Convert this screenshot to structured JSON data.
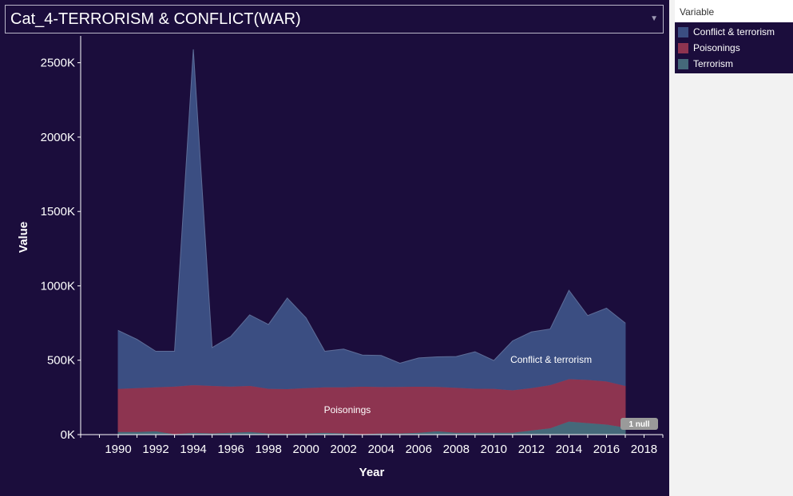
{
  "filter": {
    "selected": "Cat_4-TERRORISM & CONFLICT(WAR)"
  },
  "legend": {
    "title": "Variable",
    "items": [
      {
        "label": "Conflict & terrorism",
        "color": "#3b4e82"
      },
      {
        "label": "Poisonings",
        "color": "#8d3450"
      },
      {
        "label": "Terrorism",
        "color": "#45697a"
      }
    ]
  },
  "chart_data": {
    "type": "area",
    "stacked": true,
    "xlabel": "Year",
    "ylabel": "Value",
    "x_ticks": [
      1990,
      1992,
      1994,
      1996,
      1998,
      2000,
      2002,
      2004,
      2006,
      2008,
      2010,
      2012,
      2014,
      2016,
      2018
    ],
    "y_ticks": [
      0,
      500,
      1000,
      1500,
      2000,
      2500
    ],
    "y_tick_labels": [
      "0K",
      "500K",
      "1000K",
      "1500K",
      "2000K",
      "2500K"
    ],
    "xlim": [
      1988,
      2019
    ],
    "ylim": [
      0,
      2600
    ],
    "value_unit": "K",
    "x": [
      1990,
      1991,
      1992,
      1993,
      1994,
      1995,
      1996,
      1997,
      1998,
      1999,
      2000,
      2001,
      2002,
      2003,
      2004,
      2005,
      2006,
      2007,
      2008,
      2009,
      2010,
      2011,
      2012,
      2013,
      2014,
      2015,
      2016,
      2017
    ],
    "series": [
      {
        "name": "Terrorism",
        "color": "#45697a",
        "values": [
          20,
          20,
          25,
          5,
          15,
          10,
          15,
          20,
          10,
          8,
          10,
          15,
          10,
          5,
          10,
          10,
          15,
          25,
          15,
          15,
          15,
          15,
          30,
          45,
          90,
          80,
          70,
          50
        ]
      },
      {
        "name": "Poisonings",
        "color": "#8d3450",
        "values": [
          290,
          295,
          295,
          320,
          320,
          320,
          310,
          310,
          300,
          300,
          305,
          305,
          310,
          320,
          312,
          313,
          310,
          298,
          302,
          296,
          295,
          285,
          285,
          290,
          285,
          290,
          290,
          280
        ]
      },
      {
        "name": "Conflict & terrorism",
        "color": "#3b4e82",
        "values": [
          390,
          325,
          240,
          235,
          2255,
          255,
          335,
          475,
          430,
          610,
          470,
          240,
          255,
          210,
          210,
          157,
          190,
          200,
          208,
          246,
          188,
          330,
          375,
          375,
          595,
          430,
          490,
          420
        ]
      }
    ],
    "area_labels": [
      {
        "series": "Conflict & terrorism",
        "text": "Conflict & terrorism"
      },
      {
        "series": "Poisonings",
        "text": "Poisonings"
      }
    ],
    "null_badge": "1 null"
  }
}
